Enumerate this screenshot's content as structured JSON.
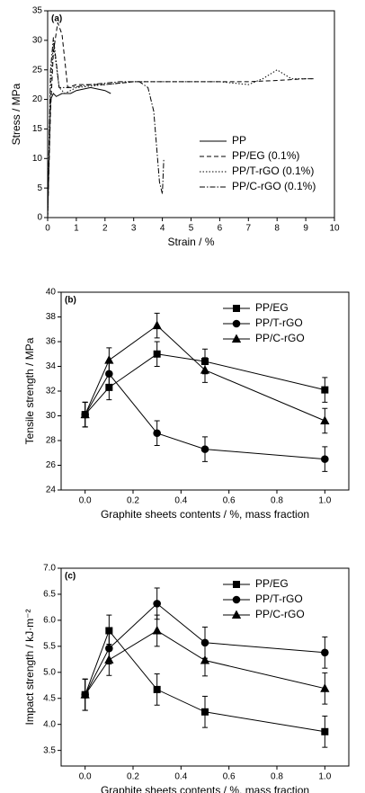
{
  "chart_data": [
    {
      "type": "line",
      "panel_label": "(a)",
      "x_label": "Strain / %",
      "y_label": "Stress / MPa",
      "xlim": [
        0,
        10
      ],
      "xticks": [
        0,
        1,
        2,
        3,
        4,
        5,
        6,
        7,
        8,
        9,
        10
      ],
      "ylim": [
        0,
        35
      ],
      "yticks": [
        0,
        5,
        10,
        15,
        20,
        25,
        30,
        35
      ],
      "legend": "lower right",
      "series": [
        {
          "name": "PP",
          "color": "#000000",
          "line_style": "solid",
          "x": [
            0,
            0.1,
            0.2,
            0.3,
            0.5,
            0.8,
            1.0,
            1.5,
            2.0,
            2.2
          ],
          "values": [
            0,
            20,
            21,
            20.5,
            21,
            21,
            21.5,
            22,
            21.5,
            21
          ]
        },
        {
          "name": "PP/EG (0.1%)",
          "color": "#000000",
          "line_style": "dashed",
          "x": [
            0,
            0.1,
            0.2,
            0.35,
            0.5,
            0.7,
            1,
            2,
            3,
            4,
            5,
            6,
            7,
            8,
            9,
            9.3
          ],
          "values": [
            0,
            18,
            28,
            33,
            31,
            22,
            22.5,
            22.5,
            23,
            23,
            23,
            23,
            23,
            23.2,
            23.5,
            23.5
          ]
        },
        {
          "name": "PP/T-rGO (0.1%)",
          "color": "#000000",
          "line_style": "dotted",
          "x": [
            0,
            0.1,
            0.2,
            0.4,
            0.6,
            1,
            2,
            3,
            4,
            5,
            6,
            7,
            7.5,
            8,
            8.5,
            9.2
          ],
          "values": [
            0,
            22,
            29.5,
            22,
            21,
            22,
            22.5,
            23,
            23,
            23,
            23,
            22.5,
            23.5,
            25,
            23.5,
            23.5
          ]
        },
        {
          "name": "PP/C-rGO (0.1%)",
          "color": "#000000",
          "line_style": "dashdot",
          "x": [
            0,
            0.1,
            0.2,
            0.4,
            0.8,
            1.5,
            2.5,
            3.2,
            3.5,
            3.7,
            3.8,
            3.9,
            4.0,
            4.05
          ],
          "values": [
            0,
            25,
            30.5,
            22,
            22,
            22.5,
            23,
            23,
            22,
            18,
            12,
            6,
            4,
            10
          ]
        }
      ]
    },
    {
      "type": "line",
      "panel_label": "(b)",
      "x_label": "Graphite sheets contents / %, mass fraction",
      "y_label": "Tensile strength / MPa",
      "x": [
        0,
        0.1,
        0.3,
        0.5,
        1.0
      ],
      "xlim": [
        -0.1,
        1.1
      ],
      "xticks": [
        {
          "value": 0,
          "label": "0.0"
        },
        0.2,
        0.4,
        0.6,
        0.8,
        {
          "value": 1,
          "label": "1.0"
        }
      ],
      "ylim": [
        24,
        40
      ],
      "yticks": [
        24,
        26,
        28,
        30,
        32,
        34,
        36,
        38,
        40
      ],
      "legend": "upper right",
      "series": [
        {
          "name": "PP/EG",
          "color": "#000000",
          "marker": "square",
          "values": [
            30.1,
            32.3,
            35.0,
            34.4,
            32.1
          ],
          "errors": [
            1,
            1,
            1,
            1,
            1
          ]
        },
        {
          "name": "PP/T-rGO",
          "color": "#000000",
          "marker": "circle",
          "values": [
            30.1,
            33.4,
            28.6,
            27.3,
            26.5
          ],
          "errors": [
            1,
            1,
            1,
            1,
            1
          ]
        },
        {
          "name": "PP/C-rGO",
          "color": "#000000",
          "marker": "triangle",
          "values": [
            30.1,
            34.5,
            37.3,
            33.7,
            29.6
          ],
          "errors": [
            1,
            1,
            1,
            1,
            1
          ]
        }
      ]
    },
    {
      "type": "line",
      "panel_label": "(c)",
      "x_label": "Graphite sheets contents / %, mass fraction",
      "y_label": "Impact strength / kJ·m⁻²",
      "x": [
        0,
        0.1,
        0.3,
        0.5,
        1.0
      ],
      "xlim": [
        -0.1,
        1.1
      ],
      "xticks": [
        {
          "value": 0,
          "label": "0.0"
        },
        0.2,
        0.4,
        0.6,
        0.8,
        {
          "value": 1,
          "label": "1.0"
        }
      ],
      "ylim": [
        3.2,
        7.0
      ],
      "yticks": [
        3.5,
        {
          "value": 4,
          "label": "4.0"
        },
        4.5,
        {
          "value": 5,
          "label": "5.0"
        },
        5.5,
        {
          "value": 6,
          "label": "6.0"
        },
        6.5,
        {
          "value": 7,
          "label": "7.0"
        }
      ],
      "legend": "upper right",
      "series": [
        {
          "name": "PP/EG",
          "color": "#000000",
          "marker": "square",
          "values": [
            4.57,
            5.8,
            4.67,
            4.24,
            3.86
          ],
          "errors": [
            0.3,
            0.3,
            0.3,
            0.3,
            0.3
          ]
        },
        {
          "name": "PP/T-rGO",
          "color": "#000000",
          "marker": "circle",
          "values": [
            4.57,
            5.46,
            6.32,
            5.57,
            5.38
          ],
          "errors": [
            0.3,
            0.3,
            0.3,
            0.3,
            0.3
          ]
        },
        {
          "name": "PP/C-rGO",
          "color": "#000000",
          "marker": "triangle",
          "values": [
            4.57,
            5.24,
            5.8,
            5.23,
            4.69
          ],
          "errors": [
            0.3,
            0.3,
            0.3,
            0.3,
            0.3
          ]
        }
      ]
    }
  ]
}
